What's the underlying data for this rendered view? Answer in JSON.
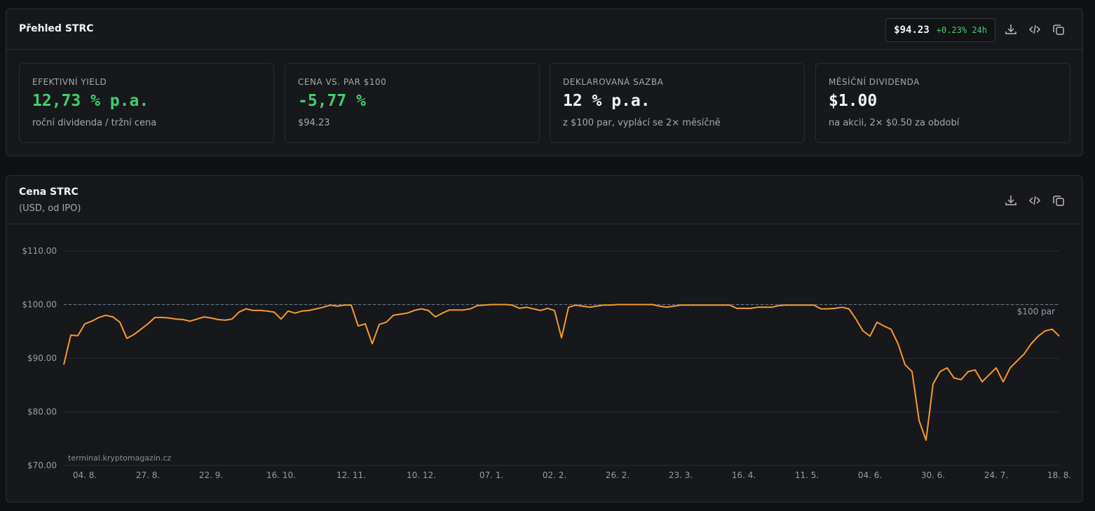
{
  "overview": {
    "title": "Přehled STRC",
    "price": "$94.23",
    "change": "+0.23% 24h",
    "cards": [
      {
        "label": "EFEKTIVNÍ YIELD",
        "value": "12,73 % p.a.",
        "note": "roční dividenda / tržní cena",
        "color": "#3fcf6f"
      },
      {
        "label": "CENA VS. PAR $100",
        "value": "-5,77 %",
        "note": "$94.23",
        "color": "#3fcf6f"
      },
      {
        "label": "DEKLAROVANÁ SAZBA",
        "value": "12 % p.a.",
        "note": "z $100 par, vyplácí se 2× měsíčně",
        "color": "#f2f3f5"
      },
      {
        "label": "MĚSÍČNÍ DIVIDENDA",
        "value": "$1.00",
        "note": "na akcii, 2× $0.50 za období",
        "color": "#f2f3f5"
      }
    ]
  },
  "chart_data": {
    "type": "line",
    "title": "Cena STRC",
    "subtitle": "(USD, od IPO)",
    "color": "#f59a2f",
    "grid": true,
    "values": [
      88.8,
      94.3,
      94.2,
      96.4,
      96.9,
      97.6,
      98.0,
      97.7,
      96.7,
      93.7,
      94.4,
      95.4,
      96.4,
      97.6,
      97.6,
      97.5,
      97.3,
      97.2,
      96.9,
      97.3,
      97.7,
      97.5,
      97.2,
      97.1,
      97.3,
      98.6,
      99.2,
      98.9,
      98.9,
      98.8,
      98.6,
      97.3,
      98.8,
      98.4,
      98.8,
      98.9,
      99.2,
      99.5,
      99.9,
      99.7,
      99.9,
      99.9,
      96.0,
      96.4,
      92.7,
      96.3,
      96.7,
      98.0,
      98.2,
      98.4,
      98.9,
      99.2,
      98.9,
      97.7,
      98.4,
      99.0,
      99.0,
      99.0,
      99.2,
      99.8,
      99.9,
      100.0,
      100.0,
      100.0,
      99.9,
      99.3,
      99.5,
      99.2,
      98.9,
      99.3,
      98.9,
      93.8,
      99.5,
      99.9,
      99.7,
      99.5,
      99.7,
      99.9,
      99.9,
      100.0,
      100.0,
      100.0,
      100.0,
      100.0,
      100.0,
      99.7,
      99.5,
      99.7,
      99.9,
      99.9,
      99.9,
      99.9,
      99.9,
      99.9,
      99.9,
      99.9,
      99.3,
      99.3,
      99.3,
      99.5,
      99.5,
      99.5,
      99.8,
      99.9,
      99.9,
      99.9,
      99.9,
      99.9,
      99.2,
      99.2,
      99.3,
      99.5,
      99.2,
      97.3,
      95.1,
      94.1,
      96.7,
      96.0,
      95.4,
      92.7,
      88.8,
      87.5,
      78.4,
      74.7,
      85.2,
      87.5,
      88.2,
      86.3,
      86.0,
      87.5,
      87.8,
      85.6,
      86.9,
      88.2,
      85.6,
      88.2,
      89.5,
      90.8,
      92.7,
      94.1,
      95.1,
      95.4,
      94.1
    ],
    "xlim": [
      0,
      142
    ],
    "xticks": [
      {
        "value": 3,
        "label": "04. 8."
      },
      {
        "value": 12,
        "label": "27. 8."
      },
      {
        "value": 21,
        "label": "22. 9."
      },
      {
        "value": 31,
        "label": "16. 10."
      },
      {
        "value": 41,
        "label": "12. 11."
      },
      {
        "value": 51,
        "label": "10. 12."
      },
      {
        "value": 61,
        "label": "07. 1."
      },
      {
        "value": 70,
        "label": "02. 2."
      },
      {
        "value": 79,
        "label": "26. 2."
      },
      {
        "value": 88,
        "label": "23. 3."
      },
      {
        "value": 97,
        "label": "16. 4."
      },
      {
        "value": 106,
        "label": "11. 5."
      },
      {
        "value": 115,
        "label": "04. 6."
      },
      {
        "value": 124,
        "label": "30. 6."
      },
      {
        "value": 133,
        "label": "24. 7."
      },
      {
        "value": 142,
        "label": "18. 8."
      }
    ],
    "ylim": [
      70,
      110
    ],
    "yticks": [
      {
        "value": 70,
        "label": "$70.00"
      },
      {
        "value": 80,
        "label": "$80.00"
      },
      {
        "value": 90,
        "label": "$90.00"
      },
      {
        "value": 100,
        "label": "$100.00"
      },
      {
        "value": 110,
        "label": "$110.00"
      }
    ],
    "reference_line": {
      "value": 100,
      "label": "$100 par"
    },
    "watermark": "terminal.kryptomagazin.cz"
  }
}
